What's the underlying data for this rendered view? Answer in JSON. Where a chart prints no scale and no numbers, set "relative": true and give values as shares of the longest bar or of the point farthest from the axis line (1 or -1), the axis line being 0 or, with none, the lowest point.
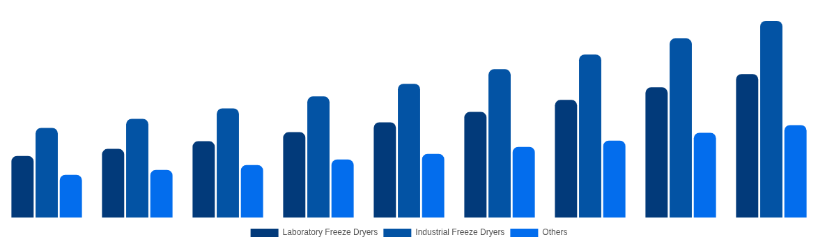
{
  "chart_data": {
    "type": "bar",
    "relative": true,
    "legend": "bottom",
    "grid": false,
    "categories": [
      null,
      null,
      null,
      null,
      null,
      null,
      null,
      null,
      null
    ],
    "series": [
      {
        "name": "Laboratory Freeze Dryers",
        "color": "#023a7a",
        "values": [
          0.313,
          0.349,
          0.388,
          0.434,
          0.484,
          0.537,
          0.598,
          0.662,
          0.73
        ]
      },
      {
        "name": "Industrial Freeze Dryers",
        "color": "#0353a4",
        "values": [
          0.456,
          0.502,
          0.555,
          0.616,
          0.68,
          0.754,
          0.829,
          0.911,
          1
        ]
      },
      {
        "name": "Others",
        "color": "#036ded",
        "values": [
          0.217,
          0.242,
          0.267,
          0.295,
          0.324,
          0.359,
          0.391,
          0.431,
          0.47
        ]
      }
    ]
  }
}
